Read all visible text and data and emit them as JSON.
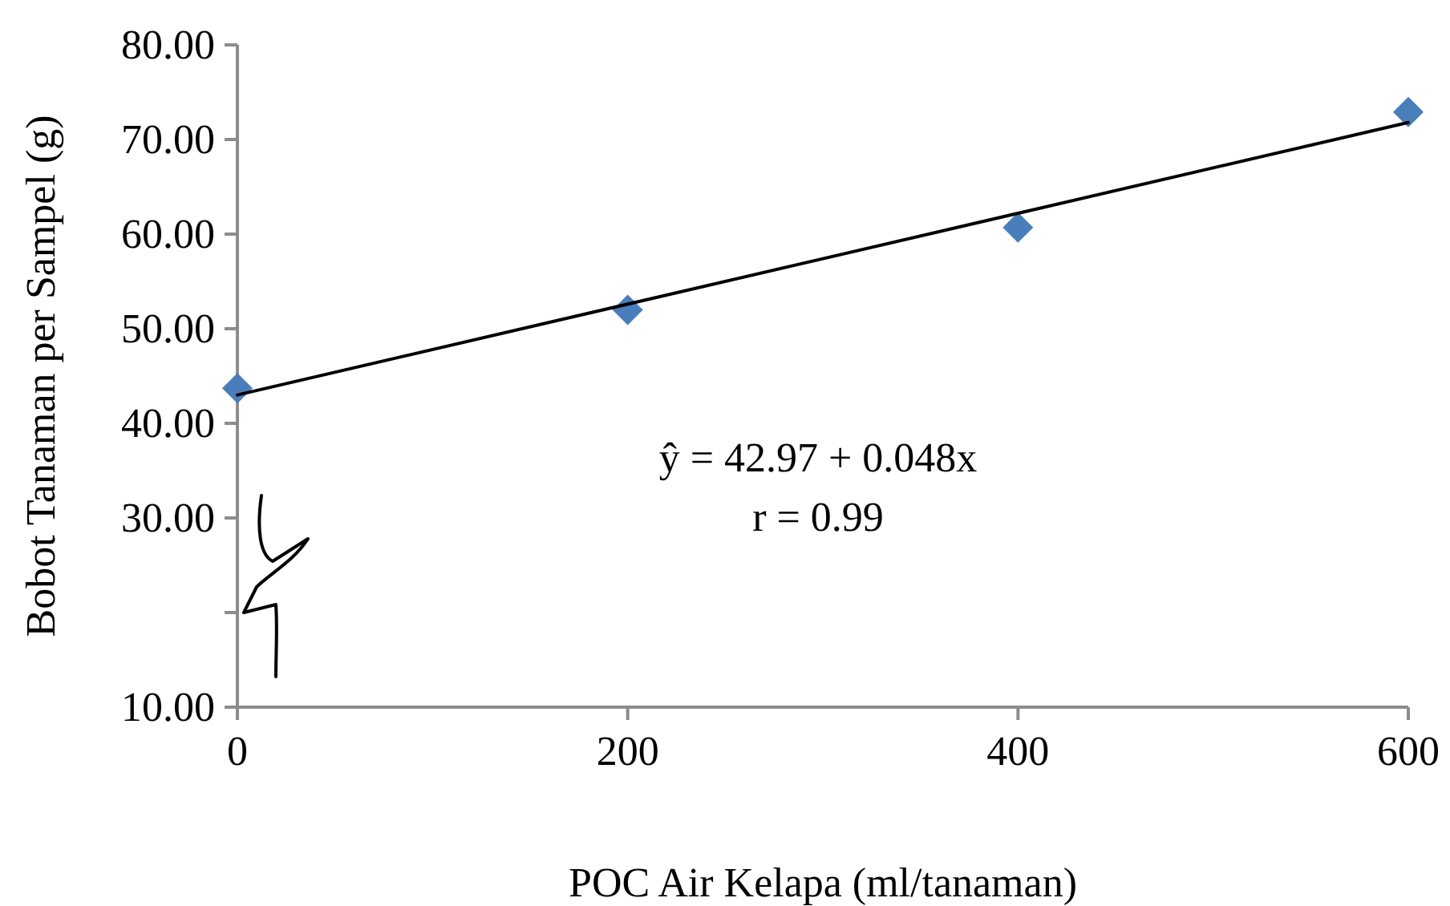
{
  "chart_data": {
    "type": "scatter",
    "xlabel": "POC Air Kelapa (ml/tanaman)",
    "ylabel": "Bobot Tanaman per Sampel (g)",
    "series": [
      {
        "color": "#4a7ebb",
        "marker": "diamond",
        "x": [
          0,
          200,
          400,
          600
        ],
        "values": [
          43.7,
          52.0,
          60.7,
          72.9
        ]
      },
      {
        "type": "line",
        "color": "#000000",
        "marker": "none",
        "line_style": "solid",
        "x": [
          0,
          600
        ],
        "values": [
          43.0,
          71.8
        ]
      }
    ],
    "xlim": [
      0,
      600
    ],
    "xticks": [
      0,
      200,
      400,
      600
    ],
    "ylim": [
      10,
      80
    ],
    "yticks": [
      {
        "value": 10,
        "label": "10.00"
      },
      {
        "value": 20,
        "label": null
      },
      {
        "value": 30,
        "label": "30.00"
      },
      {
        "value": 40,
        "label": "40.00"
      },
      {
        "value": 50,
        "label": "50.00"
      },
      {
        "value": 60,
        "label": "60.00"
      },
      {
        "value": 70,
        "label": "70.00"
      },
      {
        "value": 80,
        "label": "80.00"
      }
    ],
    "annotations": [
      "ŷ =  42.97 + 0.048x",
      "r = 0.99"
    ],
    "grid": false
  }
}
